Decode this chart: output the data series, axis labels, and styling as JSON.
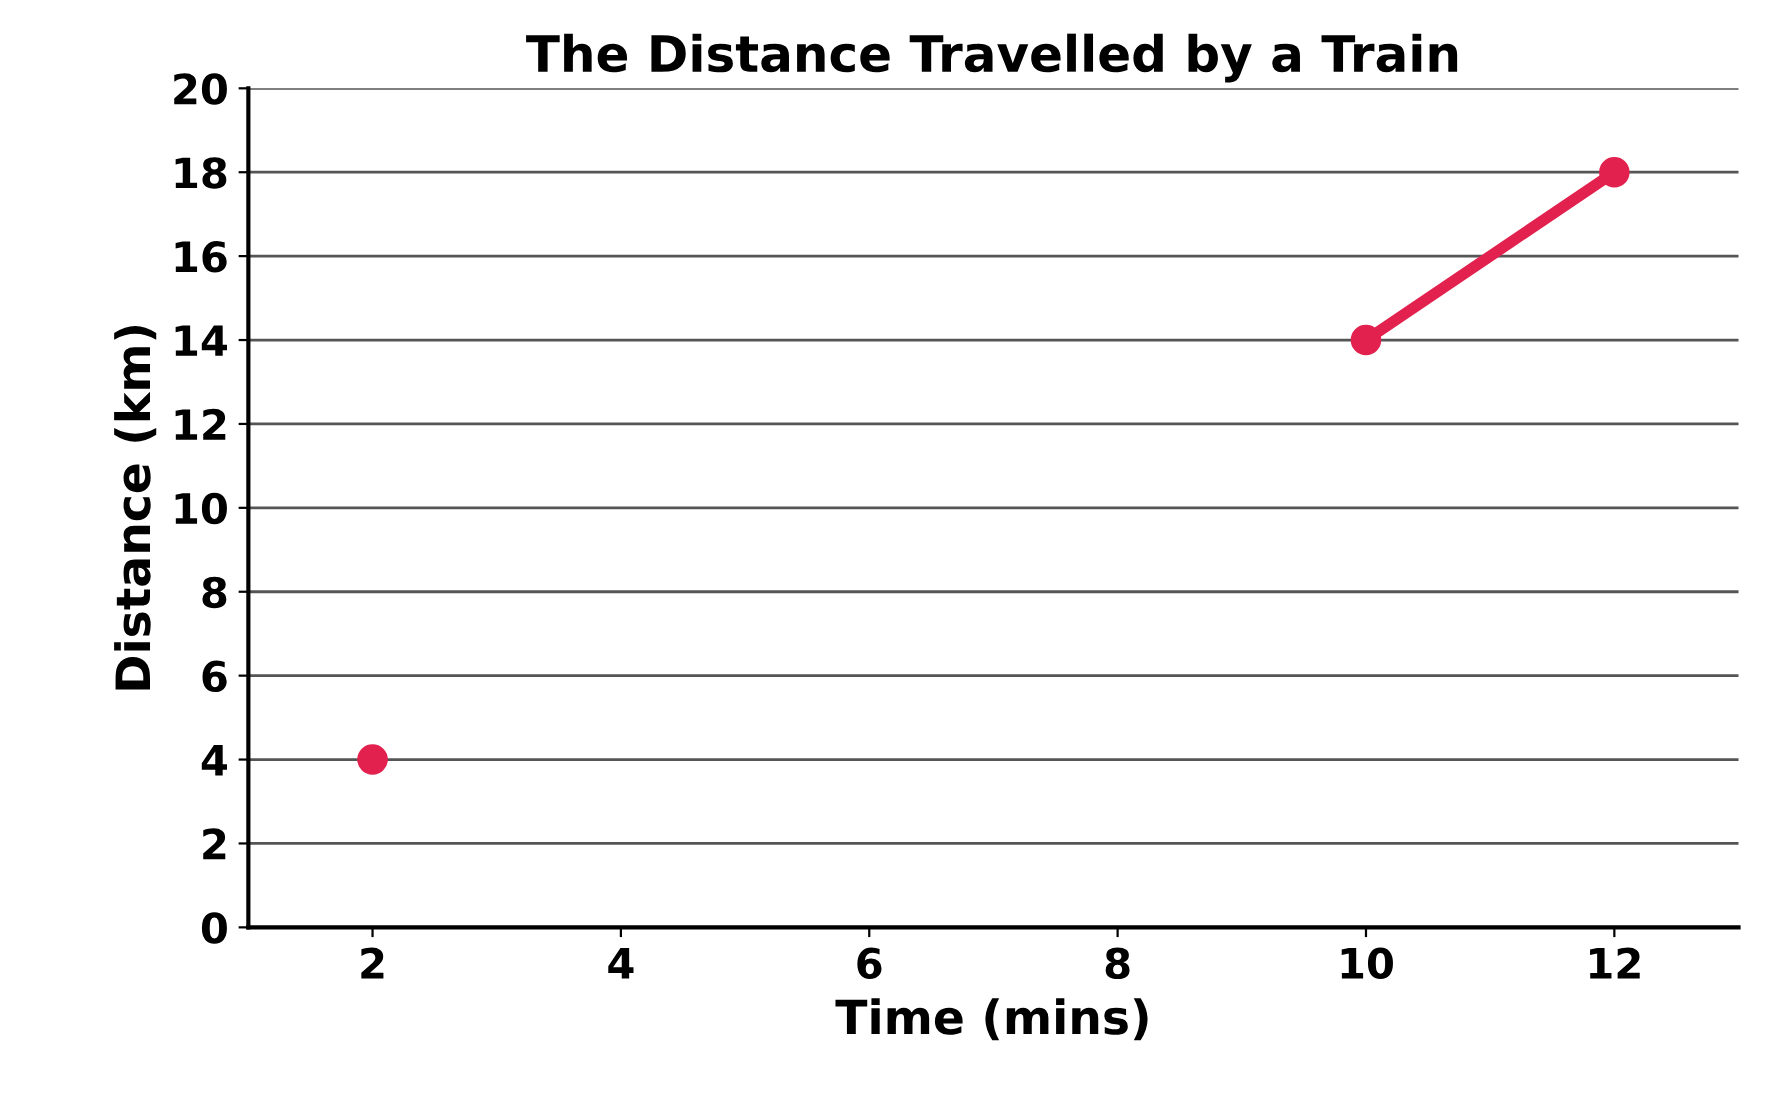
{
  "chart_data": {
    "type": "line",
    "title": "The Distance Travelled by a Train",
    "xlabel": "Time (mins)",
    "ylabel": "Distance (km)",
    "x": [
      2,
      4,
      6,
      8,
      10,
      12
    ],
    "series": [
      {
        "color": "#e3214f",
        "values": [
          4,
          null,
          null,
          null,
          14,
          18
        ]
      }
    ],
    "xlim": [
      1,
      13
    ],
    "xticks": [
      2,
      4,
      6,
      8,
      10,
      12
    ],
    "ylim": [
      0,
      20
    ],
    "yticks": [
      0,
      2,
      4,
      6,
      8,
      10,
      12,
      14,
      16,
      18,
      20
    ],
    "grid": "y",
    "marker": "circle",
    "line_style": "solid"
  }
}
